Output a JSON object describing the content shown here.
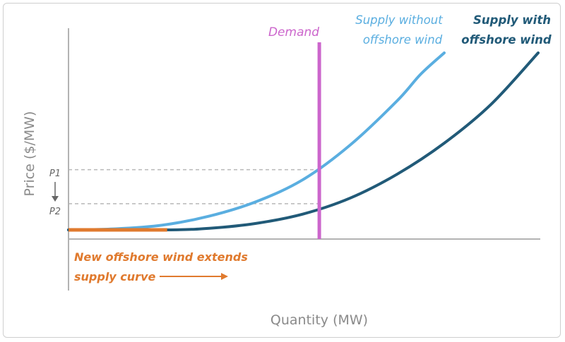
{
  "chart_data": {
    "type": "line",
    "title": "",
    "xlabel": "Quantity (MW)",
    "ylabel": "Price ($/MW)",
    "xlim": [
      0,
      100
    ],
    "ylim": [
      0,
      100
    ],
    "grid": false,
    "series": [
      {
        "name": "Supply without offshore wind",
        "color": "#5aaee0",
        "x": [
          0,
          10,
          20,
          30,
          40,
          50,
          60,
          70,
          75,
          80
        ],
        "y": [
          0,
          0.6,
          2.7,
          7.8,
          16,
          28.5,
          48,
          73,
          88,
          100
        ]
      },
      {
        "name": "Supply with offshore wind",
        "color": "#215a78",
        "x": [
          0,
          21,
          30,
          40,
          50,
          60,
          70,
          80,
          90,
          100
        ],
        "y": [
          0,
          0,
          0.9,
          3.7,
          9,
          18,
          31.5,
          49,
          71,
          100
        ]
      },
      {
        "name": "Demand",
        "color": "#cc66cc",
        "x": [
          53.4,
          53.4
        ],
        "y": [
          0,
          100
        ]
      }
    ],
    "extension_segment": {
      "color": "#e07a2e",
      "x": [
        0,
        21
      ],
      "y": [
        0,
        0
      ]
    },
    "reference_levels": [
      {
        "label": "P1",
        "y": 34
      },
      {
        "label": "P2",
        "y": 14.8
      }
    ],
    "annotations": {
      "demand": "Demand",
      "supply_without": [
        "Supply without",
        "offshore wind"
      ],
      "supply_with": [
        "Supply with",
        "offshore wind"
      ],
      "extension_note": [
        "New offshore wind extends",
        "supply curve"
      ]
    },
    "colors": {
      "axis": "#b3b3b3",
      "axis_label": "#8a8a8a",
      "price_marker": "#666666",
      "dashed": "#b8b8b8",
      "note": "#e07a2e"
    }
  }
}
